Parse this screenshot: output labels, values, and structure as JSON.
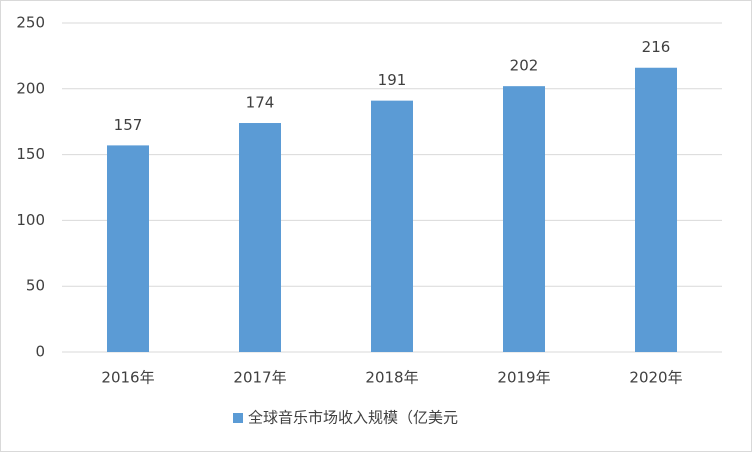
{
  "chart_data": {
    "type": "bar",
    "categories": [
      "2016年",
      "2017年",
      "2018年",
      "2019年",
      "2020年"
    ],
    "series": [
      {
        "name": "全球音乐市场收入规模（亿美元",
        "color": "#5b9bd5",
        "values": [
          157,
          174,
          191,
          202,
          216
        ]
      }
    ],
    "ylim": [
      0,
      250
    ],
    "yticks": [
      0,
      50,
      100,
      150,
      200,
      250
    ],
    "grid": true,
    "legend": "bottom"
  }
}
